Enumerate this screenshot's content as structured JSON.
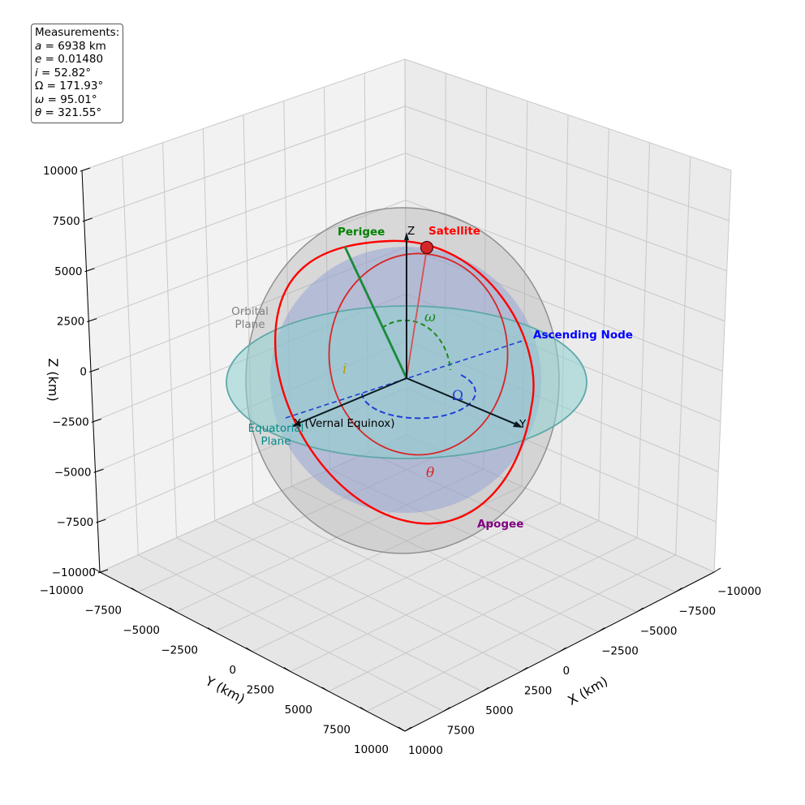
{
  "chart_data": {
    "type": "3d-orbit",
    "axes": {
      "xlabel": "X (km)",
      "ylabel": "Y (km)",
      "zlabel": "Z (km)",
      "xlim": [
        -10000,
        10000
      ],
      "ylim": [
        -10000,
        10000
      ],
      "zlim": [
        -10000,
        10000
      ],
      "x_ticks": [
        "−10000",
        "−7500",
        "−5000",
        "−2500",
        "0",
        "2500",
        "5000",
        "7500",
        "10000"
      ],
      "y_ticks": [
        "−10000",
        "−7500",
        "−5000",
        "−2500",
        "0",
        "2500",
        "5000",
        "7500",
        "10000"
      ],
      "z_ticks": [
        "−10000",
        "−7500",
        "−5000",
        "−2500",
        "0",
        "2500",
        "5000",
        "7500",
        "10000"
      ],
      "grid": true
    },
    "measurements": {
      "title": "Measurements:",
      "a": "6938 km",
      "e": "0.01480",
      "i": "52.82°",
      "Omega": "171.93°",
      "omega": "95.01°",
      "theta": "321.55°"
    },
    "annotations": {
      "perigee": "Perigee",
      "satellite": "Satellite",
      "ascending_node": "Ascending Node",
      "apogee": "Apogee",
      "orbital_plane": "Orbital\nPlane",
      "equatorial_plane": "Equatorial\nPlane",
      "x_ref": "X (Vernal Equinox)",
      "y_ref": "Y",
      "z_ref": "Z",
      "sym_i": "i",
      "sym_omega": "ω",
      "sym_Omega": "Ω",
      "sym_theta": "θ"
    },
    "colors": {
      "orbit": "#ff0000",
      "perigee": "#008000",
      "ascending_node": "#0000ff",
      "apogee": "#800080",
      "satellite": "#d62728",
      "equatorial_plane": "#008b8b",
      "orbital_plane": "#808080",
      "earth": "#6b7fc4",
      "inclination": "#b8a000"
    }
  }
}
